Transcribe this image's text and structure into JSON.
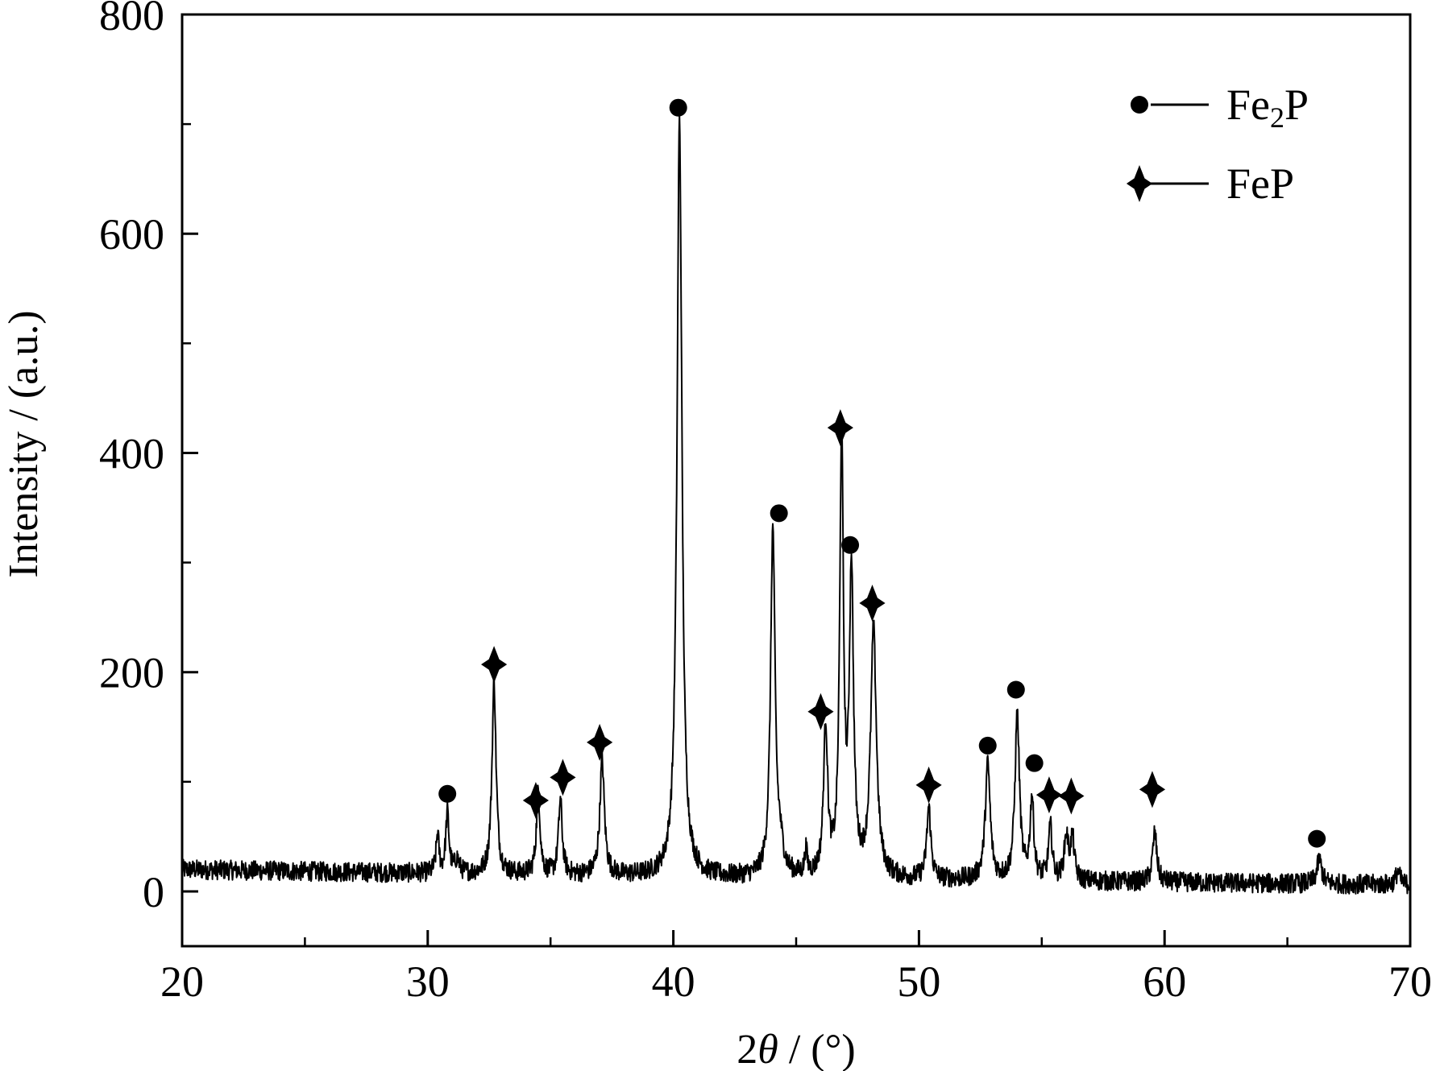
{
  "chart_data": {
    "type": "line",
    "title": "",
    "xlabel_prefix": "2",
    "xlabel_symbol": "θ",
    "xlabel_suffix": " / (°)",
    "ylabel": "Intensity / (a.u.)",
    "xlim": [
      20,
      70
    ],
    "ylim": [
      -50,
      800
    ],
    "x_ticks": [
      20,
      30,
      40,
      50,
      60,
      70
    ],
    "y_ticks": [
      0,
      200,
      400,
      600,
      800
    ],
    "x_minor_step": 5,
    "y_minor_step": 100,
    "grid": false,
    "legend_position": "top-right",
    "colors": {
      "line": "#000000",
      "marker": "#000000"
    },
    "series": [
      {
        "baseline": {
          "start": 20,
          "end": 12,
          "end_x": 42,
          "tail": 6
        },
        "peaks": [
          {
            "x": 30.4,
            "h": 35,
            "w": 0.07
          },
          {
            "x": 30.8,
            "h": 55,
            "w": 0.08
          },
          {
            "x": 31.2,
            "h": 12,
            "w": 0.1
          },
          {
            "x": 32.7,
            "h": 175,
            "w": 0.1
          },
          {
            "x": 34.5,
            "h": 75,
            "w": 0.09
          },
          {
            "x": 35.4,
            "h": 68,
            "w": 0.09
          },
          {
            "x": 37.1,
            "h": 105,
            "w": 0.11
          },
          {
            "x": 40.25,
            "h": 690,
            "w": 0.12
          },
          {
            "x": 44.05,
            "h": 315,
            "w": 0.11
          },
          {
            "x": 44.35,
            "h": 20,
            "w": 0.15
          },
          {
            "x": 45.4,
            "h": 22,
            "w": 0.06
          },
          {
            "x": 46.2,
            "h": 135,
            "w": 0.1
          },
          {
            "x": 46.85,
            "h": 395,
            "w": 0.09
          },
          {
            "x": 47.25,
            "h": 275,
            "w": 0.1
          },
          {
            "x": 48.15,
            "h": 225,
            "w": 0.14
          },
          {
            "x": 50.4,
            "h": 65,
            "w": 0.1
          },
          {
            "x": 52.8,
            "h": 105,
            "w": 0.12
          },
          {
            "x": 54.0,
            "h": 150,
            "w": 0.11
          },
          {
            "x": 54.6,
            "h": 75,
            "w": 0.09
          },
          {
            "x": 55.35,
            "h": 48,
            "w": 0.09
          },
          {
            "x": 56.0,
            "h": 40,
            "w": 0.1
          },
          {
            "x": 56.25,
            "h": 38,
            "w": 0.09
          },
          {
            "x": 59.6,
            "h": 45,
            "w": 0.1
          },
          {
            "x": 66.3,
            "h": 22,
            "w": 0.12
          },
          {
            "x": 69.5,
            "h": 12,
            "w": 0.1
          }
        ]
      }
    ],
    "markers": [
      {
        "phase": "Fe2P",
        "x": 30.8,
        "y": 89
      },
      {
        "phase": "FeP",
        "x": 32.7,
        "y": 207
      },
      {
        "phase": "FeP",
        "x": 34.4,
        "y": 83
      },
      {
        "phase": "FeP",
        "x": 35.5,
        "y": 104
      },
      {
        "phase": "FeP",
        "x": 37.0,
        "y": 136
      },
      {
        "phase": "Fe2P",
        "x": 40.2,
        "y": 715
      },
      {
        "phase": "Fe2P",
        "x": 44.3,
        "y": 345
      },
      {
        "phase": "FeP",
        "x": 46.0,
        "y": 164
      },
      {
        "phase": "FeP",
        "x": 46.8,
        "y": 423
      },
      {
        "phase": "Fe2P",
        "x": 47.2,
        "y": 316
      },
      {
        "phase": "FeP",
        "x": 48.1,
        "y": 263
      },
      {
        "phase": "FeP",
        "x": 50.4,
        "y": 97
      },
      {
        "phase": "Fe2P",
        "x": 52.8,
        "y": 133
      },
      {
        "phase": "Fe2P",
        "x": 53.95,
        "y": 184
      },
      {
        "phase": "Fe2P",
        "x": 54.7,
        "y": 117
      },
      {
        "phase": "FeP",
        "x": 55.3,
        "y": 88
      },
      {
        "phase": "FeP",
        "x": 56.2,
        "y": 87
      },
      {
        "phase": "FeP",
        "x": 59.5,
        "y": 93
      },
      {
        "phase": "Fe2P",
        "x": 66.2,
        "y": 48
      }
    ],
    "legend": [
      {
        "phase": "Fe2P",
        "symbol": "circle",
        "label_main": "Fe",
        "label_sub": "2",
        "label_tail": "P"
      },
      {
        "phase": "FeP",
        "symbol": "star",
        "label_main": "FeP",
        "label_sub": "",
        "label_tail": ""
      }
    ]
  }
}
